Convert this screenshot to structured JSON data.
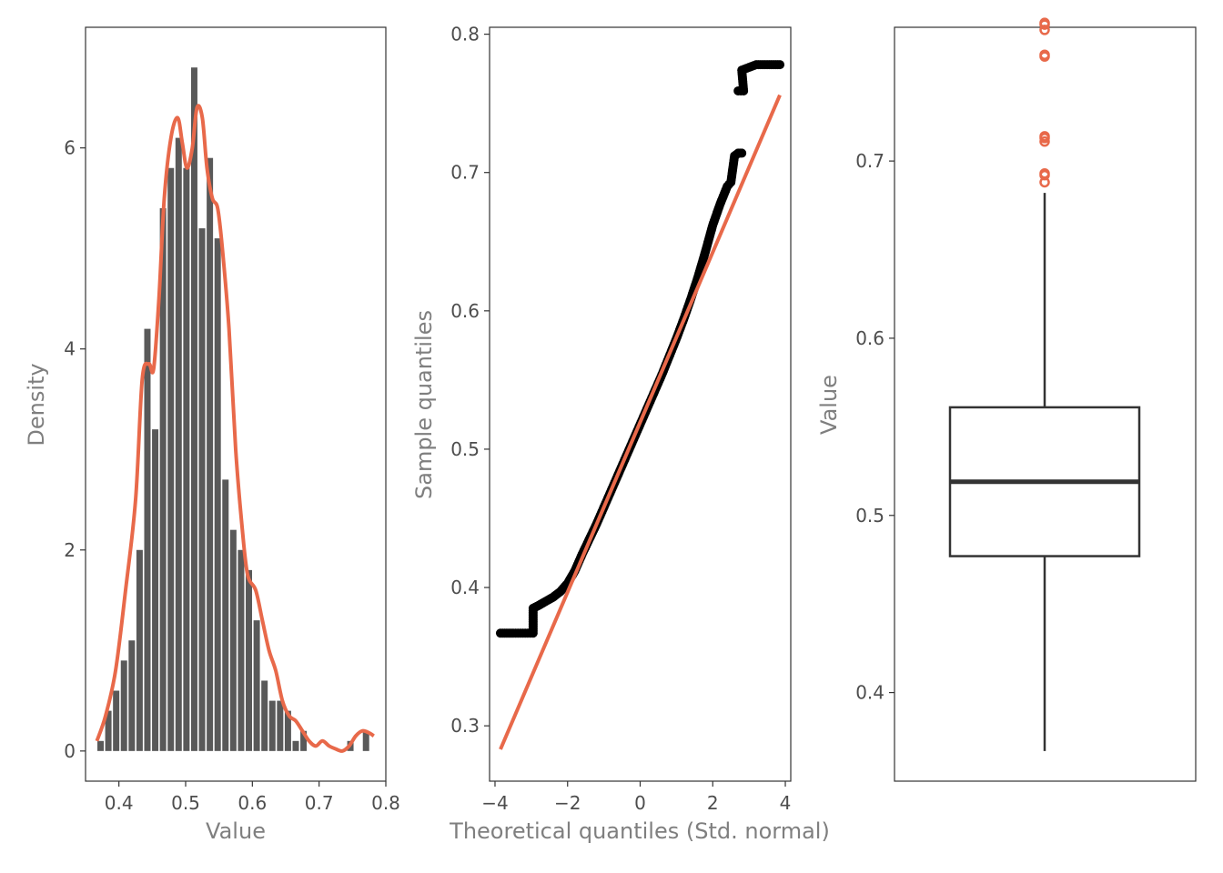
{
  "colors": {
    "bar": "#595959",
    "accent": "#e8694a",
    "points": "#000000",
    "box_line": "#333333",
    "axis_text": "#4d4d4d",
    "axis_title": "#7f7f7f"
  },
  "chart_data": [
    {
      "type": "bar",
      "subtype": "histogram-with-density",
      "xlabel": "Value",
      "ylabel": "Density",
      "xlim": [
        0.35,
        0.8
      ],
      "ylim": [
        -0.3,
        7.2
      ],
      "x_ticks": [
        0.4,
        0.5,
        0.6,
        0.7,
        0.8
      ],
      "x_tick_labels": [
        "0.4",
        "0.5",
        "0.6",
        "0.7",
        "0.8"
      ],
      "y_ticks": [
        0,
        2,
        4,
        6
      ],
      "y_tick_labels": [
        "0",
        "2",
        "4",
        "6"
      ],
      "bin_width": 0.0117,
      "bins": [
        {
          "x": 0.3725,
          "y": 0.1
        },
        {
          "x": 0.3842,
          "y": 0.4
        },
        {
          "x": 0.3959,
          "y": 0.6
        },
        {
          "x": 0.4076,
          "y": 0.9
        },
        {
          "x": 0.4193,
          "y": 1.1
        },
        {
          "x": 0.431,
          "y": 2.0
        },
        {
          "x": 0.4427,
          "y": 4.2
        },
        {
          "x": 0.4544,
          "y": 3.2
        },
        {
          "x": 0.4661,
          "y": 5.4
        },
        {
          "x": 0.4778,
          "y": 5.8
        },
        {
          "x": 0.4895,
          "y": 6.1
        },
        {
          "x": 0.5012,
          "y": 5.8
        },
        {
          "x": 0.5129,
          "y": 6.8
        },
        {
          "x": 0.5246,
          "y": 5.2
        },
        {
          "x": 0.5363,
          "y": 5.9
        },
        {
          "x": 0.548,
          "y": 5.1
        },
        {
          "x": 0.5597,
          "y": 2.7
        },
        {
          "x": 0.5714,
          "y": 2.2
        },
        {
          "x": 0.5831,
          "y": 2.0
        },
        {
          "x": 0.5948,
          "y": 1.8
        },
        {
          "x": 0.6065,
          "y": 1.3
        },
        {
          "x": 0.6182,
          "y": 0.7
        },
        {
          "x": 0.6299,
          "y": 0.5
        },
        {
          "x": 0.6416,
          "y": 0.5
        },
        {
          "x": 0.6533,
          "y": 0.4
        },
        {
          "x": 0.665,
          "y": 0.1
        },
        {
          "x": 0.6767,
          "y": 0.2
        },
        {
          "x": 0.6884,
          "y": 0.0
        },
        {
          "x": 0.7001,
          "y": 0.0
        },
        {
          "x": 0.7118,
          "y": 0.0
        },
        {
          "x": 0.7235,
          "y": 0.0
        },
        {
          "x": 0.7352,
          "y": 0.0
        },
        {
          "x": 0.7469,
          "y": 0.1
        },
        {
          "x": 0.7586,
          "y": 0.0
        },
        {
          "x": 0.7703,
          "y": 0.2
        }
      ],
      "density_curve": [
        [
          0.367,
          0.1
        ],
        [
          0.38,
          0.35
        ],
        [
          0.395,
          0.8
        ],
        [
          0.41,
          1.6
        ],
        [
          0.425,
          2.5
        ],
        [
          0.435,
          3.7
        ],
        [
          0.445,
          3.85
        ],
        [
          0.452,
          3.8
        ],
        [
          0.46,
          4.5
        ],
        [
          0.468,
          5.5
        ],
        [
          0.478,
          6.1
        ],
        [
          0.488,
          6.3
        ],
        [
          0.495,
          6.05
        ],
        [
          0.502,
          5.8
        ],
        [
          0.51,
          6.0
        ],
        [
          0.517,
          6.4
        ],
        [
          0.525,
          6.3
        ],
        [
          0.532,
          5.8
        ],
        [
          0.54,
          5.5
        ],
        [
          0.548,
          5.4
        ],
        [
          0.555,
          5.0
        ],
        [
          0.565,
          4.2
        ],
        [
          0.575,
          3.0
        ],
        [
          0.585,
          2.2
        ],
        [
          0.593,
          1.75
        ],
        [
          0.605,
          1.6
        ],
        [
          0.615,
          1.3
        ],
        [
          0.625,
          1.0
        ],
        [
          0.635,
          0.8
        ],
        [
          0.645,
          0.5
        ],
        [
          0.655,
          0.35
        ],
        [
          0.665,
          0.3
        ],
        [
          0.675,
          0.2
        ],
        [
          0.685,
          0.1
        ],
        [
          0.695,
          0.05
        ],
        [
          0.705,
          0.1
        ],
        [
          0.715,
          0.05
        ],
        [
          0.725,
          0.02
        ],
        [
          0.735,
          0.0
        ],
        [
          0.745,
          0.05
        ],
        [
          0.755,
          0.15
        ],
        [
          0.765,
          0.2
        ],
        [
          0.775,
          0.18
        ],
        [
          0.782,
          0.15
        ]
      ]
    },
    {
      "type": "scatter",
      "subtype": "qq-plot",
      "xlabel": "Theoretical quantiles (Std. normal)",
      "ylabel": "Sample quantiles",
      "xlim": [
        -4.15,
        4.15
      ],
      "ylim": [
        0.26,
        0.805
      ],
      "x_ticks": [
        -4,
        -2,
        0,
        2,
        4
      ],
      "x_tick_labels": [
        "−4",
        "−2",
        "0",
        "2",
        "4"
      ],
      "y_ticks": [
        0.3,
        0.4,
        0.5,
        0.6,
        0.7,
        0.8
      ],
      "y_tick_labels": [
        "0.3",
        "0.4",
        "0.5",
        "0.6",
        "0.7",
        "0.8"
      ],
      "reference_line": {
        "from": [
          -3.85,
          0.283
        ],
        "to": [
          3.85,
          0.756
        ]
      },
      "points_approx_curve": [
        [
          -3.85,
          0.367
        ],
        [
          -3.5,
          0.367
        ],
        [
          -3.3,
          0.367
        ],
        [
          -3.1,
          0.367
        ],
        [
          -2.95,
          0.367
        ],
        [
          -2.95,
          0.385
        ],
        [
          -2.8,
          0.387
        ],
        [
          -2.6,
          0.39
        ],
        [
          -2.4,
          0.393
        ],
        [
          -2.2,
          0.397
        ],
        [
          -2.0,
          0.403
        ],
        [
          -1.8,
          0.412
        ],
        [
          -1.6,
          0.424
        ],
        [
          -1.4,
          0.435
        ],
        [
          -1.2,
          0.446
        ],
        [
          -1.0,
          0.458
        ],
        [
          -0.8,
          0.47
        ],
        [
          -0.6,
          0.482
        ],
        [
          -0.4,
          0.494
        ],
        [
          -0.2,
          0.506
        ],
        [
          0.0,
          0.518
        ],
        [
          0.2,
          0.53
        ],
        [
          0.4,
          0.542
        ],
        [
          0.6,
          0.554
        ],
        [
          0.8,
          0.567
        ],
        [
          1.0,
          0.58
        ],
        [
          1.2,
          0.594
        ],
        [
          1.4,
          0.609
        ],
        [
          1.6,
          0.625
        ],
        [
          1.8,
          0.643
        ],
        [
          2.0,
          0.662
        ],
        [
          2.2,
          0.677
        ],
        [
          2.4,
          0.69
        ],
        [
          2.5,
          0.693
        ],
        [
          2.6,
          0.712
        ],
        [
          2.7,
          0.714
        ],
        [
          2.8,
          0.714
        ],
        [
          2.7,
          0.759
        ],
        [
          2.85,
          0.759
        ],
        [
          2.8,
          0.774
        ],
        [
          3.0,
          0.776
        ],
        [
          3.2,
          0.778
        ],
        [
          3.5,
          0.778
        ],
        [
          3.85,
          0.778
        ]
      ]
    },
    {
      "type": "box",
      "xlabel": "",
      "ylabel": "Value",
      "ylim": [
        0.35,
        0.7755
      ],
      "y_ticks": [
        0.4,
        0.5,
        0.6,
        0.7
      ],
      "y_tick_labels": [
        "0.4",
        "0.5",
        "0.6",
        "0.7"
      ],
      "whisker_low": 0.367,
      "q1": 0.477,
      "median": 0.519,
      "q3": 0.561,
      "whisker_high": 0.682,
      "outliers": [
        0.688,
        0.692,
        0.693,
        0.711,
        0.713,
        0.714,
        0.759,
        0.76,
        0.774,
        0.777,
        0.778
      ]
    }
  ]
}
